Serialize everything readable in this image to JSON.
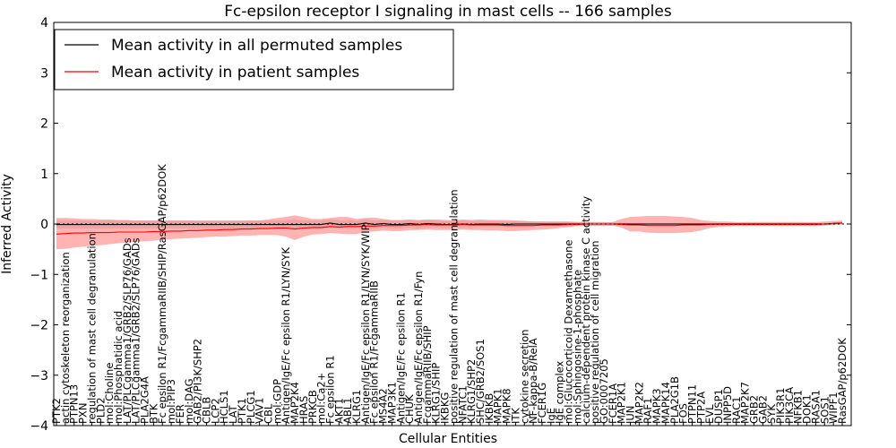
{
  "chart_data": {
    "type": "line",
    "title": "Fc-epsilon receptor I signaling in mast cells -- 166 samples",
    "xlabel": "Cellular Entities",
    "ylabel": "Inferred Activity",
    "ylim": [
      -4,
      4
    ],
    "yticks": [
      -4,
      -3,
      -2,
      -1,
      0,
      1,
      2,
      3,
      4
    ],
    "legend_position": "top-left",
    "categories": [
      "PTK2",
      "actin cytoskeleton reorganization",
      "PTPN13",
      "PXN",
      "regulation of mast cell degranulation",
      "PLD2",
      "mol:Choline",
      "mol:Phosphatidic acid",
      "LAT/PLCgamma1/GRB2/SLP76/GADs",
      "LAT/PLCgamma1/GRB2/SLP76/GADs",
      "PLA2G4A",
      "BTK",
      "Fc epsilon R1/FcgammaRIIB/SHIP/RasGAP/p62DOK",
      "mol:PIP3",
      "FER",
      "mol:DAG",
      "GAB2/PI3K/SHP2",
      "CBLB",
      "LCP2",
      "HCLS1",
      "LAT",
      "PTK1",
      "PLCG1",
      "VAV1",
      "CBL",
      "mol:GDP",
      "Antigen/IgE/Fc epsilon R1/LYN/SYK",
      "MAP2K4",
      "HRAS",
      "PRKCB",
      "mol:Ca2+",
      "Fc epsilon R1",
      "AKT1",
      "ABL1",
      "KLRG1",
      "Antigen/IgE/Fc epsilon R1/LYN/SYK/WIP",
      "Fc epsilon R1/FcgammaRIIB",
      "MS4A2",
      "MAP3K1",
      "Antigen/IgE/Fc epsilon R1",
      "CHUK",
      "Antigen/IgE/Fc epsilon R1/Fyn",
      "FcgammaRIIB/SHIP",
      "KLRG1/SHIP",
      "IKBKG",
      "positive regulation of mast cell degranulation",
      "NFATC1",
      "KLRG1/SHP2",
      "SHC/GRB2/SOS1",
      "IKBKB",
      "MAPK1",
      "MAPK8",
      "ITK",
      "cytokine secretion",
      "NF-kappa-B/RelA",
      "FCER1G",
      "IgE",
      "IgE complex",
      "mol:Glucocorticoid Dexamethasone",
      "mol:Sphingosine-1-phosphate",
      "calcium-dependent protein kinase C activity",
      "positive regulation of cell migration",
      "GO:0007205",
      "FCER1A",
      "MAP2K1",
      "JUN",
      "MAP2K2",
      "RAF1",
      "MAPK3",
      "MAPK14",
      "PLA2G1B",
      "FOS",
      "PTPN11",
      "PTP2A",
      "EVL",
      "DUSP1",
      "INPP5D",
      "RAC1",
      "MAP2K7",
      "GRB2",
      "GAB2",
      "SYK",
      "PIK3R1",
      "PIK3CA",
      "NFKB1",
      "DOK1",
      "RASA1",
      "SOS1",
      "WIPF1",
      "RasGAP/p62DOK"
    ],
    "series": [
      {
        "name": "Mean activity in all permuted samples",
        "color": "#000000",
        "band_color": "#b0b0b0",
        "values": [
          -0.01,
          -0.01,
          -0.01,
          -0.01,
          -0.01,
          -0.01,
          -0.01,
          -0.01,
          -0.01,
          -0.01,
          -0.01,
          -0.01,
          -0.01,
          -0.01,
          -0.01,
          -0.01,
          -0.01,
          -0.01,
          -0.01,
          -0.01,
          -0.01,
          -0.01,
          -0.01,
          -0.01,
          -0.01,
          -0.01,
          -0.01,
          -0.01,
          -0.01,
          -0.01,
          -0.01,
          0.02,
          -0.01,
          -0.01,
          -0.01,
          0.02,
          -0.01,
          0.01,
          -0.01,
          -0.01,
          0.01,
          -0.01,
          0.01,
          0.0,
          -0.01,
          -0.01,
          0.0,
          -0.01,
          0.0,
          0.0,
          0.0,
          -0.01,
          0.0,
          0.0,
          0.0,
          0.0,
          0.0,
          0.0,
          0.0,
          0.0,
          0.0,
          0.0,
          0.0,
          0.0,
          0.0,
          0.0,
          0.0,
          0.0,
          0.0,
          0.0,
          0.0,
          0.0,
          0.0,
          0.0,
          0.0,
          0.0,
          0.0,
          0.0,
          0.0,
          0.0,
          0.0,
          0.0,
          0.0,
          0.0,
          0.0,
          0.0,
          0.0,
          0.0,
          0.01,
          0.02
        ],
        "lower": [
          -0.09,
          -0.09,
          -0.09,
          -0.09,
          -0.09,
          -0.09,
          -0.09,
          -0.09,
          -0.09,
          -0.09,
          -0.09,
          -0.09,
          -0.09,
          -0.09,
          -0.09,
          -0.09,
          -0.09,
          -0.09,
          -0.09,
          -0.09,
          -0.09,
          -0.09,
          -0.09,
          -0.09,
          -0.09,
          -0.09,
          -0.09,
          -0.12,
          -0.09,
          -0.09,
          -0.09,
          -0.08,
          -0.09,
          -0.09,
          -0.09,
          -0.08,
          -0.09,
          -0.07,
          -0.09,
          -0.09,
          -0.07,
          -0.09,
          -0.07,
          -0.07,
          -0.08,
          -0.08,
          -0.07,
          -0.08,
          -0.06,
          -0.06,
          -0.06,
          -0.07,
          -0.06,
          -0.06,
          -0.05,
          -0.05,
          -0.05,
          -0.05,
          -0.05,
          -0.04,
          -0.04,
          -0.04,
          -0.04,
          -0.03,
          -0.03,
          -0.02,
          -0.02,
          -0.02,
          -0.02,
          -0.02,
          -0.02,
          -0.02,
          -0.02,
          -0.02,
          -0.02,
          -0.02,
          -0.02,
          -0.02,
          -0.02,
          -0.02,
          -0.02,
          -0.02,
          -0.02,
          -0.02,
          -0.02,
          -0.02,
          -0.02,
          -0.02,
          -0.01,
          0.0
        ],
        "upper": [
          0.07,
          0.07,
          0.07,
          0.07,
          0.07,
          0.07,
          0.07,
          0.07,
          0.07,
          0.07,
          0.07,
          0.07,
          0.07,
          0.07,
          0.07,
          0.07,
          0.07,
          0.07,
          0.07,
          0.07,
          0.07,
          0.07,
          0.07,
          0.07,
          0.07,
          0.07,
          0.07,
          0.09,
          0.07,
          0.07,
          0.07,
          0.1,
          0.07,
          0.07,
          0.07,
          0.1,
          0.07,
          0.08,
          0.07,
          0.07,
          0.08,
          0.07,
          0.08,
          0.07,
          0.06,
          0.06,
          0.07,
          0.06,
          0.06,
          0.06,
          0.06,
          0.05,
          0.06,
          0.06,
          0.05,
          0.05,
          0.05,
          0.05,
          0.05,
          0.04,
          0.04,
          0.04,
          0.04,
          0.03,
          0.03,
          0.02,
          0.02,
          0.02,
          0.02,
          0.02,
          0.02,
          0.02,
          0.02,
          0.02,
          0.02,
          0.02,
          0.02,
          0.02,
          0.02,
          0.02,
          0.02,
          0.02,
          0.02,
          0.02,
          0.02,
          0.02,
          0.02,
          0.02,
          0.03,
          0.04
        ]
      },
      {
        "name": "Mean activity in patient samples",
        "color": "#ff0000",
        "band_color": "#ff9a9a",
        "values": [
          -0.2,
          -0.19,
          -0.18,
          -0.18,
          -0.17,
          -0.17,
          -0.17,
          -0.16,
          -0.16,
          -0.16,
          -0.16,
          -0.15,
          -0.15,
          -0.14,
          -0.14,
          -0.13,
          -0.13,
          -0.12,
          -0.12,
          -0.11,
          -0.11,
          -0.1,
          -0.1,
          -0.09,
          -0.09,
          -0.08,
          -0.08,
          -0.1,
          -0.08,
          -0.07,
          -0.07,
          -0.05,
          -0.06,
          -0.05,
          -0.05,
          -0.04,
          -0.04,
          -0.03,
          -0.03,
          -0.03,
          -0.02,
          -0.02,
          -0.01,
          -0.02,
          -0.02,
          -0.02,
          -0.01,
          -0.02,
          -0.02,
          -0.02,
          -0.02,
          -0.03,
          -0.03,
          -0.03,
          -0.03,
          -0.02,
          -0.02,
          -0.02,
          -0.01,
          -0.01,
          0.0,
          0.0,
          0.0,
          0.0,
          -0.01,
          -0.02,
          -0.02,
          -0.03,
          -0.03,
          -0.03,
          -0.03,
          -0.02,
          -0.02,
          -0.02,
          -0.01,
          -0.01,
          -0.01,
          -0.01,
          -0.01,
          -0.01,
          -0.01,
          -0.01,
          -0.01,
          -0.01,
          -0.01,
          -0.01,
          -0.01,
          0.0,
          0.01,
          0.02
        ],
        "lower": [
          -0.5,
          -0.49,
          -0.47,
          -0.45,
          -0.43,
          -0.42,
          -0.4,
          -0.38,
          -0.37,
          -0.35,
          -0.34,
          -0.33,
          -0.31,
          -0.3,
          -0.29,
          -0.28,
          -0.27,
          -0.26,
          -0.25,
          -0.25,
          -0.24,
          -0.23,
          -0.23,
          -0.22,
          -0.22,
          -0.22,
          -0.25,
          -0.32,
          -0.25,
          -0.21,
          -0.2,
          -0.18,
          -0.19,
          -0.2,
          -0.2,
          -0.16,
          -0.15,
          -0.13,
          -0.14,
          -0.14,
          -0.12,
          -0.12,
          -0.11,
          -0.12,
          -0.12,
          -0.12,
          -0.11,
          -0.12,
          -0.12,
          -0.13,
          -0.13,
          -0.14,
          -0.14,
          -0.13,
          -0.12,
          -0.11,
          -0.1,
          -0.08,
          -0.06,
          -0.04,
          -0.03,
          -0.02,
          -0.02,
          -0.03,
          -0.07,
          -0.15,
          -0.15,
          -0.17,
          -0.18,
          -0.18,
          -0.18,
          -0.17,
          -0.16,
          -0.13,
          -0.08,
          -0.06,
          -0.05,
          -0.04,
          -0.04,
          -0.04,
          -0.04,
          -0.04,
          -0.04,
          -0.04,
          -0.04,
          -0.04,
          -0.04,
          -0.03,
          -0.02,
          -0.01
        ],
        "upper": [
          0.12,
          0.12,
          0.11,
          0.1,
          0.1,
          0.09,
          0.09,
          0.08,
          0.08,
          0.07,
          0.07,
          0.07,
          0.06,
          0.07,
          0.07,
          0.07,
          0.06,
          0.06,
          0.06,
          0.06,
          0.06,
          0.06,
          0.07,
          0.07,
          0.09,
          0.12,
          0.14,
          0.17,
          0.14,
          0.1,
          0.1,
          0.12,
          0.14,
          0.14,
          0.1,
          0.12,
          0.13,
          0.1,
          0.08,
          0.08,
          0.09,
          0.08,
          0.09,
          0.09,
          0.08,
          0.07,
          0.09,
          0.08,
          0.09,
          0.08,
          0.08,
          0.08,
          0.07,
          0.06,
          0.05,
          0.05,
          0.04,
          0.04,
          0.04,
          0.04,
          0.04,
          0.03,
          0.03,
          0.04,
          0.1,
          0.14,
          0.15,
          0.16,
          0.16,
          0.16,
          0.15,
          0.14,
          0.12,
          0.08,
          0.06,
          0.05,
          0.05,
          0.04,
          0.04,
          0.04,
          0.04,
          0.04,
          0.04,
          0.04,
          0.04,
          0.04,
          0.04,
          0.05,
          0.06,
          0.07
        ]
      }
    ]
  }
}
